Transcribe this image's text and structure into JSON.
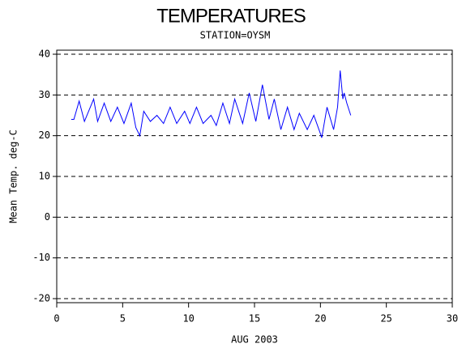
{
  "chart_data": {
    "type": "line",
    "title": "TEMPERATURES",
    "subtitle": "STATION=OYSM",
    "x_label": "AUG 2003",
    "y_label": "Mean Temp. deg-C",
    "x": [
      1.1,
      1.3,
      1.7,
      2.1,
      2.8,
      3.1,
      3.6,
      4.1,
      4.6,
      5.1,
      5.65,
      6.0,
      6.3,
      6.6,
      7.1,
      7.6,
      8.1,
      8.6,
      9.1,
      9.7,
      10.1,
      10.6,
      11.1,
      11.7,
      12.1,
      12.6,
      13.1,
      13.5,
      14.1,
      14.6,
      15.1,
      15.6,
      16.1,
      16.5,
      17.0,
      17.5,
      18.0,
      18.4,
      19.0,
      19.5,
      20.0,
      20.1,
      20.5,
      21.0,
      21.3,
      21.5,
      21.7,
      21.8,
      22.0,
      22.3
    ],
    "values": [
      24,
      24,
      28.5,
      23.5,
      29,
      23.5,
      28,
      23.5,
      27,
      23,
      28,
      22,
      20,
      26,
      23.5,
      25,
      23,
      27,
      23,
      26,
      23,
      27,
      23,
      25,
      22.5,
      28,
      23,
      29,
      23,
      30.5,
      23.5,
      32.5,
      24,
      29,
      21.5,
      27,
      21.5,
      25.5,
      21.5,
      25,
      20.5,
      19.5,
      27,
      21.5,
      27,
      36,
      29,
      30.5,
      28,
      25
    ],
    "color": "#0000ff",
    "xlim": [
      0,
      30
    ],
    "xticks": [
      0,
      5,
      10,
      15,
      20,
      25,
      30
    ],
    "ylim": [
      -20,
      40
    ],
    "yticks": [
      -20,
      -10,
      0,
      10,
      20,
      30,
      40
    ],
    "grid": true
  }
}
